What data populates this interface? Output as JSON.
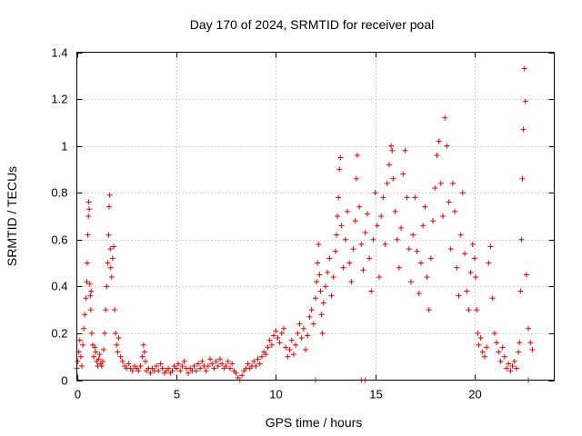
{
  "chart_data": {
    "type": "scatter",
    "title": "Day 170 of 2024, SRMTID for receiver poal",
    "xlabel": "GPS time / hours",
    "ylabel": "SRMTID / TECUs",
    "xlim": [
      0,
      24
    ],
    "ylim": [
      0,
      1.4
    ],
    "xticks": [
      0,
      5,
      10,
      15,
      20
    ],
    "xtick_labels": [
      "0",
      "5",
      "10",
      "15",
      "20"
    ],
    "yticks": [
      0,
      0.2,
      0.4,
      0.6,
      0.8,
      1,
      1.2,
      1.4
    ],
    "ytick_labels": [
      "0",
      "0.2",
      "0.4",
      "0.6",
      "0.8",
      "1",
      "1.2",
      "1.4"
    ],
    "grid": true,
    "marker": "+",
    "color": "#e00000",
    "series": [
      {
        "name": "SRMTID",
        "points": [
          [
            0.0,
            0.05
          ],
          [
            0.05,
            0.08
          ],
          [
            0.1,
            0.12
          ],
          [
            0.15,
            0.17
          ],
          [
            0.2,
            0.1
          ],
          [
            0.25,
            0.06
          ],
          [
            0.3,
            0.15
          ],
          [
            0.35,
            0.22
          ],
          [
            0.4,
            0.28
          ],
          [
            0.45,
            0.35
          ],
          [
            0.5,
            0.42
          ],
          [
            0.52,
            0.5
          ],
          [
            0.55,
            0.62
          ],
          [
            0.58,
            0.7
          ],
          [
            0.6,
            0.76
          ],
          [
            0.62,
            0.73
          ],
          [
            0.65,
            0.41
          ],
          [
            0.68,
            0.36
          ],
          [
            0.7,
            0.3
          ],
          [
            0.72,
            0.38
          ],
          [
            0.75,
            0.2
          ],
          [
            0.8,
            0.15
          ],
          [
            0.85,
            0.1
          ],
          [
            0.9,
            0.14
          ],
          [
            0.95,
            0.12
          ],
          [
            1.0,
            0.08
          ],
          [
            1.05,
            0.06
          ],
          [
            1.1,
            0.09
          ],
          [
            1.15,
            0.11
          ],
          [
            1.2,
            0.07
          ],
          [
            1.25,
            0.06
          ],
          [
            1.3,
            0.08
          ],
          [
            1.35,
            0.13
          ],
          [
            1.4,
            0.2
          ],
          [
            1.45,
            0.3
          ],
          [
            1.5,
            0.4
          ],
          [
            1.55,
            0.5
          ],
          [
            1.6,
            0.62
          ],
          [
            1.62,
            0.74
          ],
          [
            1.65,
            0.79
          ],
          [
            1.68,
            0.56
          ],
          [
            1.7,
            0.48
          ],
          [
            1.75,
            0.44
          ],
          [
            1.8,
            0.52
          ],
          [
            1.85,
            0.57
          ],
          [
            1.9,
            0.3
          ],
          [
            1.95,
            0.2
          ],
          [
            2.0,
            0.15
          ],
          [
            2.05,
            0.12
          ],
          [
            2.1,
            0.18
          ],
          [
            2.2,
            0.1
          ],
          [
            2.3,
            0.08
          ],
          [
            2.4,
            0.06
          ],
          [
            2.5,
            0.05
          ],
          [
            2.6,
            0.07
          ],
          [
            2.7,
            0.05
          ],
          [
            2.8,
            0.04
          ],
          [
            2.9,
            0.06
          ],
          [
            3.0,
            0.05
          ],
          [
            3.1,
            0.04
          ],
          [
            3.2,
            0.06
          ],
          [
            3.3,
            0.1
          ],
          [
            3.35,
            0.15
          ],
          [
            3.4,
            0.12
          ],
          [
            3.45,
            0.08
          ],
          [
            3.5,
            0.04
          ],
          [
            3.6,
            0.05
          ],
          [
            3.7,
            0.03
          ],
          [
            3.8,
            0.05
          ],
          [
            3.9,
            0.04
          ],
          [
            4.0,
            0.06
          ],
          [
            4.1,
            0.04
          ],
          [
            4.2,
            0.07
          ],
          [
            4.3,
            0.05
          ],
          [
            4.4,
            0.03
          ],
          [
            4.5,
            0.04
          ],
          [
            4.6,
            0.05
          ],
          [
            4.7,
            0.03
          ],
          [
            4.8,
            0.04
          ],
          [
            4.9,
            0.06
          ],
          [
            5.0,
            0.05
          ],
          [
            5.1,
            0.07
          ],
          [
            5.2,
            0.04
          ],
          [
            5.3,
            0.06
          ],
          [
            5.4,
            0.08
          ],
          [
            5.5,
            0.05
          ],
          [
            5.6,
            0.03
          ],
          [
            5.7,
            0.05
          ],
          [
            5.8,
            0.04
          ],
          [
            5.9,
            0.06
          ],
          [
            6.0,
            0.04
          ],
          [
            6.1,
            0.07
          ],
          [
            6.2,
            0.05
          ],
          [
            6.3,
            0.08
          ],
          [
            6.4,
            0.06
          ],
          [
            6.5,
            0.04
          ],
          [
            6.6,
            0.06
          ],
          [
            6.7,
            0.09
          ],
          [
            6.8,
            0.07
          ],
          [
            6.9,
            0.05
          ],
          [
            7.0,
            0.08
          ],
          [
            7.1,
            0.06
          ],
          [
            7.2,
            0.09
          ],
          [
            7.3,
            0.07
          ],
          [
            7.4,
            0.05
          ],
          [
            7.5,
            0.06
          ],
          [
            7.6,
            0.08
          ],
          [
            7.7,
            0.05
          ],
          [
            7.8,
            0.07
          ],
          [
            7.9,
            0.04
          ],
          [
            8.0,
            0.03
          ],
          [
            8.1,
            0.01
          ],
          [
            8.2,
            0.0
          ],
          [
            8.3,
            0.02
          ],
          [
            8.4,
            0.04
          ],
          [
            8.5,
            0.05
          ],
          [
            8.6,
            0.07
          ],
          [
            8.7,
            0.05
          ],
          [
            8.8,
            0.06
          ],
          [
            8.9,
            0.08
          ],
          [
            9.0,
            0.06
          ],
          [
            9.1,
            0.09
          ],
          [
            9.2,
            0.07
          ],
          [
            9.3,
            0.1
          ],
          [
            9.4,
            0.12
          ],
          [
            9.5,
            0.11
          ],
          [
            9.6,
            0.14
          ],
          [
            9.7,
            0.17
          ],
          [
            9.8,
            0.15
          ],
          [
            9.9,
            0.19
          ],
          [
            10.0,
            0.21
          ],
          [
            10.1,
            0.18
          ],
          [
            10.2,
            0.16
          ],
          [
            10.3,
            0.2
          ],
          [
            10.4,
            0.22
          ],
          [
            10.5,
            0.14
          ],
          [
            10.6,
            0.1
          ],
          [
            10.7,
            0.13
          ],
          [
            10.8,
            0.17
          ],
          [
            10.9,
            0.11
          ],
          [
            11.0,
            0.15
          ],
          [
            11.1,
            0.2
          ],
          [
            11.2,
            0.24
          ],
          [
            11.3,
            0.18
          ],
          [
            11.4,
            0.22
          ],
          [
            11.5,
            0.13
          ],
          [
            11.6,
            0.19
          ],
          [
            11.7,
            0.27
          ],
          [
            11.8,
            0.3
          ],
          [
            11.9,
            0.24
          ],
          [
            12.0,
            0.35
          ],
          [
            12.05,
            0.42
          ],
          [
            12.1,
            0.5
          ],
          [
            12.15,
            0.58
          ],
          [
            12.2,
            0.45
          ],
          [
            12.25,
            0.38
          ],
          [
            12.3,
            0.28
          ],
          [
            12.35,
            0.2
          ],
          [
            12.4,
            0.33
          ],
          [
            12.5,
            0.4
          ],
          [
            12.6,
            0.46
          ],
          [
            12.7,
            0.52
          ],
          [
            12.8,
            0.36
          ],
          [
            12.9,
            0.44
          ],
          [
            13.0,
            0.55
          ],
          [
            13.05,
            0.62
          ],
          [
            13.1,
            0.7
          ],
          [
            13.15,
            0.78
          ],
          [
            13.2,
            0.9
          ],
          [
            13.25,
            0.95
          ],
          [
            13.3,
            0.66
          ],
          [
            13.4,
            0.48
          ],
          [
            13.5,
            0.6
          ],
          [
            13.6,
            0.72
          ],
          [
            13.7,
            0.5
          ],
          [
            13.8,
            0.42
          ],
          [
            13.9,
            0.56
          ],
          [
            14.0,
            0.68
          ],
          [
            14.05,
            0.86
          ],
          [
            14.1,
            0.96
          ],
          [
            14.2,
            0.74
          ],
          [
            14.3,
            0.58
          ],
          [
            14.4,
            0.47
          ],
          [
            14.5,
            0.63
          ],
          [
            14.6,
            0.71
          ],
          [
            14.7,
            0.52
          ],
          [
            14.8,
            0.38
          ],
          [
            14.9,
            0.6
          ],
          [
            15.0,
            0.8
          ],
          [
            15.1,
            0.66
          ],
          [
            15.2,
            0.44
          ],
          [
            15.3,
            0.7
          ],
          [
            15.4,
            0.78
          ],
          [
            15.5,
            0.58
          ],
          [
            15.6,
            0.84
          ],
          [
            15.7,
            0.92
          ],
          [
            15.8,
            1.0
          ],
          [
            15.85,
            0.98
          ],
          [
            15.9,
            0.86
          ],
          [
            16.0,
            0.72
          ],
          [
            16.1,
            0.6
          ],
          [
            16.2,
            0.48
          ],
          [
            16.3,
            0.65
          ],
          [
            16.4,
            0.88
          ],
          [
            16.5,
            0.98
          ],
          [
            16.6,
            0.78
          ],
          [
            16.7,
            0.56
          ],
          [
            16.8,
            0.42
          ],
          [
            16.9,
            0.62
          ],
          [
            17.0,
            0.78
          ],
          [
            17.1,
            0.55
          ],
          [
            17.2,
            0.37
          ],
          [
            17.3,
            0.5
          ],
          [
            17.4,
            0.66
          ],
          [
            17.5,
            0.74
          ],
          [
            17.6,
            0.44
          ],
          [
            17.7,
            0.3
          ],
          [
            17.8,
            0.52
          ],
          [
            17.9,
            0.68
          ],
          [
            18.0,
            0.82
          ],
          [
            18.1,
            0.96
          ],
          [
            18.2,
            1.02
          ],
          [
            18.3,
            0.84
          ],
          [
            18.4,
            0.7
          ],
          [
            18.5,
            1.12
          ],
          [
            18.6,
            1.0
          ],
          [
            18.7,
            0.76
          ],
          [
            18.8,
            0.56
          ],
          [
            18.9,
            0.84
          ],
          [
            19.0,
            0.72
          ],
          [
            19.1,
            0.48
          ],
          [
            19.2,
            0.36
          ],
          [
            19.3,
            0.62
          ],
          [
            19.4,
            0.8
          ],
          [
            19.5,
            0.54
          ],
          [
            19.6,
            0.38
          ],
          [
            19.7,
            0.3
          ],
          [
            19.8,
            0.46
          ],
          [
            19.9,
            0.58
          ],
          [
            20.0,
            0.52
          ],
          [
            20.05,
            0.44
          ],
          [
            20.1,
            0.3
          ],
          [
            20.15,
            0.2
          ],
          [
            20.2,
            0.15
          ],
          [
            20.3,
            0.18
          ],
          [
            20.4,
            0.12
          ],
          [
            20.5,
            0.1
          ],
          [
            20.6,
            0.14
          ],
          [
            20.7,
            0.5
          ],
          [
            20.8,
            0.57
          ],
          [
            20.9,
            0.35
          ],
          [
            21.0,
            0.2
          ],
          [
            21.1,
            0.16
          ],
          [
            21.2,
            0.12
          ],
          [
            21.3,
            0.08
          ],
          [
            21.4,
            0.14
          ],
          [
            21.5,
            0.1
          ],
          [
            21.6,
            0.05
          ],
          [
            21.7,
            0.07
          ],
          [
            21.8,
            0.04
          ],
          [
            21.9,
            0.06
          ],
          [
            22.0,
            0.08
          ],
          [
            22.1,
            0.05
          ],
          [
            22.2,
            0.12
          ],
          [
            22.25,
            0.16
          ],
          [
            22.3,
            0.38
          ],
          [
            22.35,
            0.6
          ],
          [
            22.4,
            0.86
          ],
          [
            22.45,
            1.07
          ],
          [
            22.5,
            1.33
          ],
          [
            22.55,
            1.19
          ],
          [
            22.6,
            0.45
          ],
          [
            22.7,
            0.22
          ],
          [
            22.8,
            0.16
          ],
          [
            22.9,
            0.13
          ],
          [
            14.3,
            0.0
          ],
          [
            14.5,
            0.0
          ],
          [
            22.7,
            0.0
          ],
          [
            12.0,
            0.0
          ]
        ]
      }
    ]
  }
}
